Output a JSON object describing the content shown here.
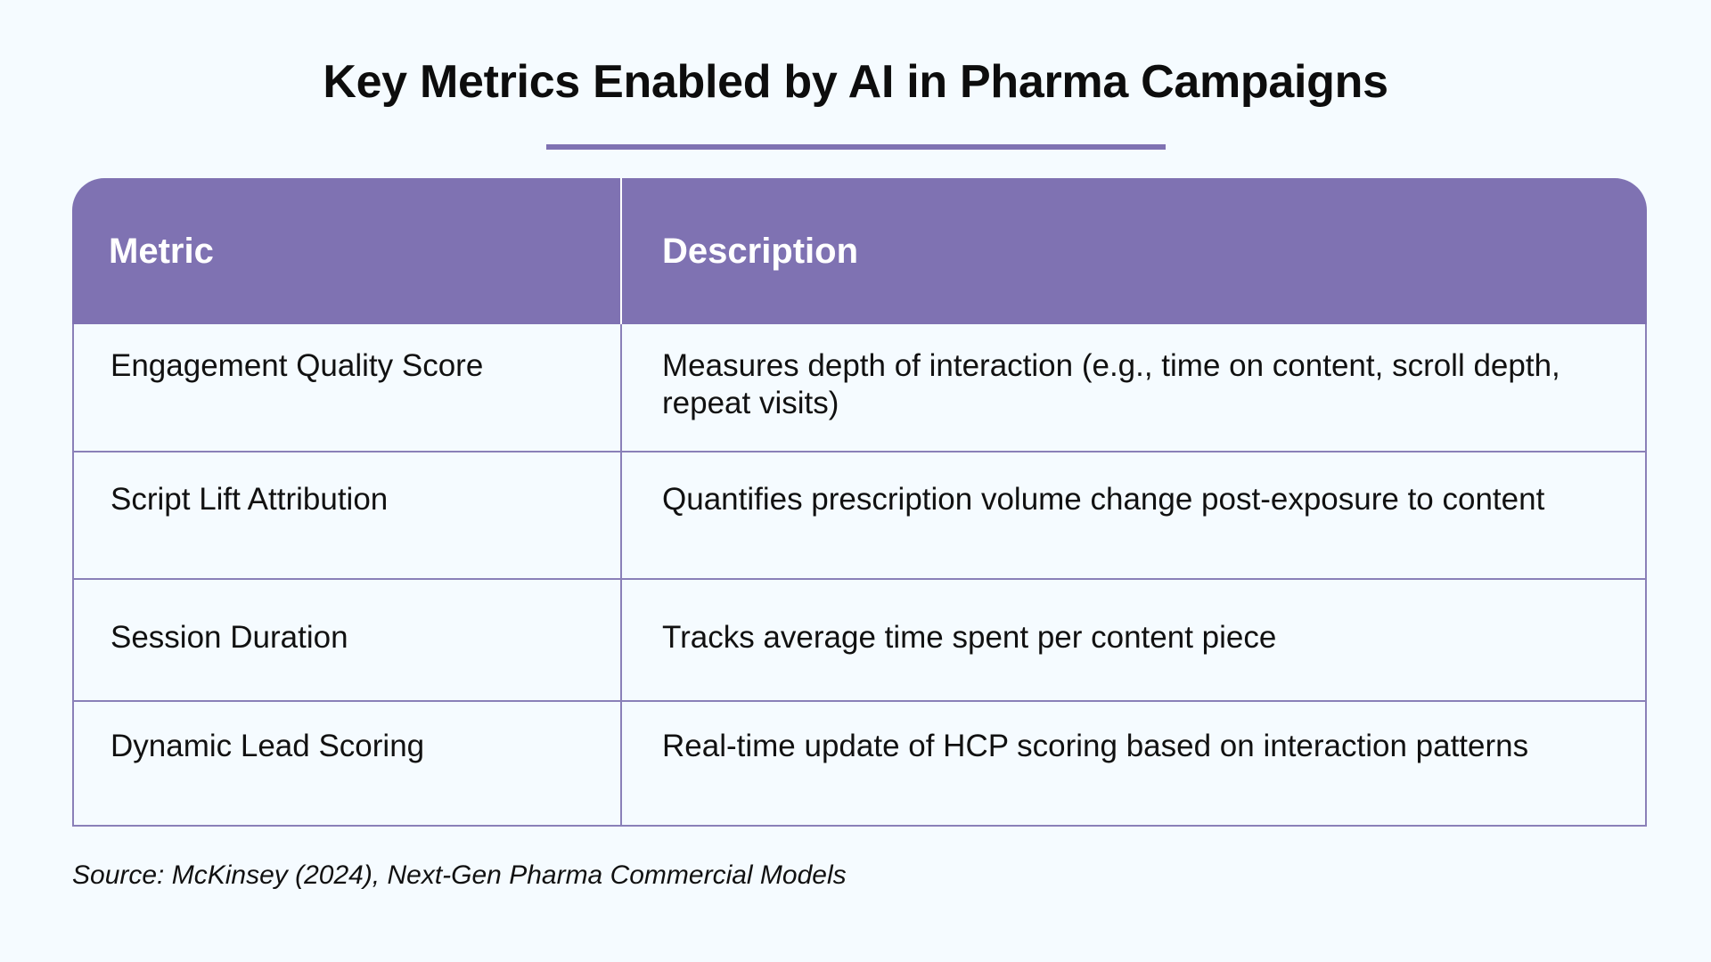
{
  "title": "Key Metrics Enabled by AI in Pharma Campaigns",
  "colors": {
    "accent": "#7f72b2",
    "background": "#f5fbff",
    "header_text": "#ffffff",
    "border": "#8a80b8"
  },
  "table": {
    "headers": [
      "Metric",
      "Description"
    ],
    "rows": [
      {
        "metric": "Engagement Quality Score",
        "description": "Measures depth of interaction (e.g., time on content, scroll depth, repeat visits)"
      },
      {
        "metric": "Script Lift Attribution",
        "description": "Quantifies prescription volume change post-exposure to content"
      },
      {
        "metric": "Session Duration",
        "description": "Tracks average time spent per content piece"
      },
      {
        "metric": "Dynamic Lead Scoring",
        "description": "Real-time update of HCP scoring based on interaction patterns"
      }
    ]
  },
  "source": "Source: McKinsey (2024), Next-Gen Pharma Commercial Models"
}
